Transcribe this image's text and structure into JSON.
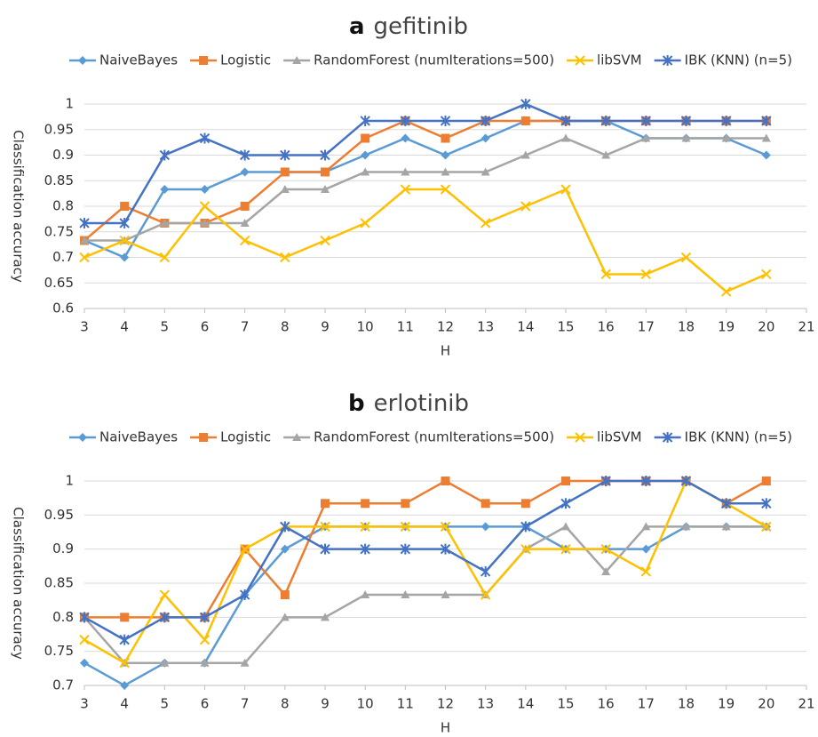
{
  "chart_data": [
    {
      "type": "line",
      "panel": "a",
      "title": "gefitinib",
      "x_label": "H",
      "y_label": "Classification accuracy",
      "x": [
        3,
        4,
        5,
        6,
        7,
        8,
        9,
        10,
        11,
        12,
        13,
        14,
        15,
        16,
        17,
        18,
        19,
        20
      ],
      "xlim": [
        3,
        21
      ],
      "xticks": [
        3,
        4,
        5,
        6,
        7,
        8,
        9,
        10,
        11,
        12,
        13,
        14,
        15,
        16,
        17,
        18,
        19,
        20,
        21
      ],
      "ylim": [
        0.6,
        1
      ],
      "yticks": [
        0.6,
        0.65,
        0.7,
        0.75,
        0.8,
        0.85,
        0.9,
        0.95,
        1
      ],
      "grid": true,
      "legend": "top",
      "series": [
        {
          "name": "NaiveBayes",
          "color": "#5b9bd5",
          "marker": "diamond",
          "values": [
            0.733,
            0.7,
            0.833,
            0.833,
            0.867,
            0.867,
            0.867,
            0.9,
            0.933,
            0.9,
            0.933,
            0.967,
            0.967,
            0.967,
            0.933,
            0.933,
            0.933,
            0.9
          ]
        },
        {
          "name": "Logistic",
          "color": "#ed7d31",
          "marker": "square",
          "values": [
            0.733,
            0.8,
            0.767,
            0.767,
            0.8,
            0.867,
            0.867,
            0.933,
            0.967,
            0.933,
            0.967,
            0.967,
            0.967,
            0.967,
            0.967,
            0.967,
            0.967,
            0.967
          ]
        },
        {
          "name": "RandomForest (numIterations=500)",
          "color": "#a5a5a5",
          "marker": "triangle",
          "values": [
            0.733,
            0.733,
            0.767,
            0.767,
            0.767,
            0.833,
            0.833,
            0.867,
            0.867,
            0.867,
            0.867,
            0.9,
            0.933,
            0.9,
            0.933,
            0.933,
            0.933,
            0.933
          ]
        },
        {
          "name": "libSVM",
          "color": "#ffc000",
          "marker": "x",
          "values": [
            0.7,
            0.733,
            0.7,
            0.8,
            0.733,
            0.7,
            0.733,
            0.767,
            0.833,
            0.833,
            0.767,
            0.8,
            0.833,
            0.667,
            0.667,
            0.7,
            0.633,
            0.667
          ]
        },
        {
          "name": "IBK (KNN) (n=5)",
          "color": "#4472c4",
          "marker": "star",
          "values": [
            0.767,
            0.767,
            0.9,
            0.933,
            0.9,
            0.9,
            0.9,
            0.967,
            0.967,
            0.967,
            0.967,
            1,
            0.967,
            0.967,
            0.967,
            0.967,
            0.967,
            0.967
          ]
        }
      ]
    },
    {
      "type": "line",
      "panel": "b",
      "title": "erlotinib",
      "x_label": "H",
      "y_label": "Classification accuracy",
      "x": [
        3,
        4,
        5,
        6,
        7,
        8,
        9,
        10,
        11,
        12,
        13,
        14,
        15,
        16,
        17,
        18,
        19,
        20
      ],
      "xlim": [
        3,
        21
      ],
      "xticks": [
        3,
        4,
        5,
        6,
        7,
        8,
        9,
        10,
        11,
        12,
        13,
        14,
        15,
        16,
        17,
        18,
        19,
        20,
        21
      ],
      "ylim": [
        0.7,
        1
      ],
      "yticks": [
        0.7,
        0.75,
        0.8,
        0.85,
        0.9,
        0.95,
        1
      ],
      "grid": true,
      "legend": "top",
      "series": [
        {
          "name": "NaiveBayes",
          "color": "#5b9bd5",
          "marker": "diamond",
          "values": [
            0.733,
            0.7,
            0.733,
            0.733,
            0.833,
            0.9,
            0.933,
            0.933,
            0.933,
            0.933,
            0.933,
            0.933,
            0.9,
            0.9,
            0.9,
            0.933,
            0.933,
            0.933
          ]
        },
        {
          "name": "Logistic",
          "color": "#ed7d31",
          "marker": "square",
          "values": [
            0.8,
            0.8,
            0.8,
            0.8,
            0.9,
            0.833,
            0.967,
            0.967,
            0.967,
            1,
            0.967,
            0.967,
            1,
            1,
            1,
            1,
            0.967,
            1
          ]
        },
        {
          "name": "RandomForest (numIterations=500)",
          "color": "#a5a5a5",
          "marker": "triangle",
          "values": [
            0.8,
            0.733,
            0.733,
            0.733,
            0.733,
            0.8,
            0.8,
            0.833,
            0.833,
            0.833,
            0.833,
            0.9,
            0.933,
            0.867,
            0.933,
            0.933,
            0.933,
            0.933
          ]
        },
        {
          "name": "libSVM",
          "color": "#ffc000",
          "marker": "x",
          "values": [
            0.767,
            0.733,
            0.833,
            0.767,
            0.9,
            0.933,
            0.933,
            0.933,
            0.933,
            0.933,
            0.833,
            0.9,
            0.9,
            0.9,
            0.867,
            1,
            0.967,
            0.933
          ]
        },
        {
          "name": "IBK (KNN) (n=5)",
          "color": "#4472c4",
          "marker": "star",
          "values": [
            0.8,
            0.767,
            0.8,
            0.8,
            0.833,
            0.933,
            0.9,
            0.9,
            0.9,
            0.9,
            0.867,
            0.933,
            0.967,
            1,
            1,
            1,
            0.967,
            0.967
          ]
        }
      ]
    }
  ]
}
